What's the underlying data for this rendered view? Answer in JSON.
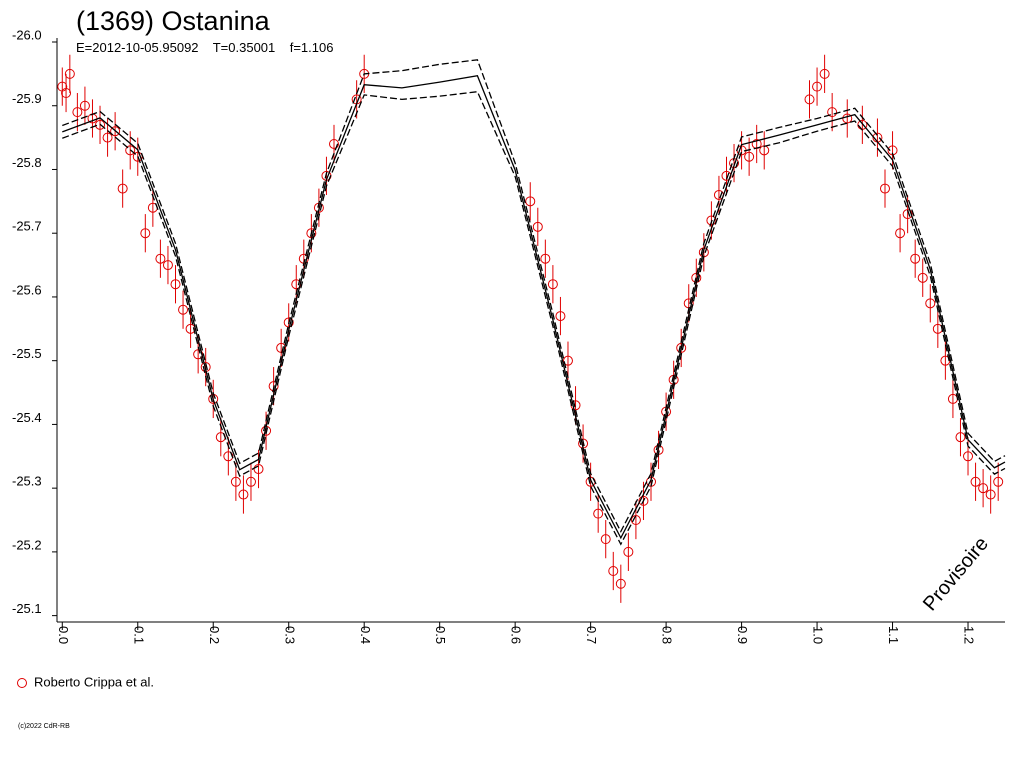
{
  "chart_data": {
    "type": "scatter",
    "title": "(1369) Ostanina",
    "subtitle": "E=2012-10-05.95092    T=0.35001    f=1.106",
    "watermark": "Provisoire",
    "footer": "(c)2022 CdR-RB",
    "xlim": [
      -0.007,
      1.249
    ],
    "ylim": [
      -25.09,
      -26.0
    ],
    "xticks": [
      {
        "value": 0,
        "label": "0.0"
      },
      0.1,
      0.2,
      0.3,
      0.4,
      0.5,
      0.6,
      0.7,
      0.8,
      0.9,
      {
        "value": 1,
        "label": "1.0"
      },
      1.1,
      1.2
    ],
    "yticks": [
      {
        "value": -26,
        "label": "-26.0"
      },
      -25.9,
      -25.8,
      -25.7,
      -25.6,
      -25.5,
      -25.4,
      -25.3,
      -25.2,
      -25.1
    ],
    "series": [
      {
        "name": "Roberto Crippa et al.",
        "color": "#e00000",
        "error": 0.03,
        "x": [
          0.0,
          0.005,
          0.01,
          0.02,
          0.03,
          0.04,
          0.05,
          0.06,
          0.07,
          0.08,
          0.09,
          0.1,
          0.11,
          0.12,
          0.13,
          0.14,
          0.15,
          0.16,
          0.17,
          0.18,
          0.19,
          0.2,
          0.21,
          0.22,
          0.23,
          0.24,
          0.25,
          0.26,
          0.27,
          0.28,
          0.29,
          0.3,
          0.31,
          0.32,
          0.33,
          0.34,
          0.35,
          0.36,
          0.39,
          0.4,
          0.62,
          0.63,
          0.64,
          0.65,
          0.66,
          0.67,
          0.68,
          0.69,
          0.7,
          0.71,
          0.72,
          0.73,
          0.74,
          0.75,
          0.76,
          0.77,
          0.78,
          0.79,
          0.8,
          0.81,
          0.82,
          0.83,
          0.84,
          0.85,
          0.86,
          0.87,
          0.88,
          0.89,
          0.9,
          0.91,
          0.92,
          0.93,
          0.99,
          1.0,
          1.01,
          1.02,
          1.04,
          1.06,
          1.08,
          1.09,
          1.1,
          1.11,
          1.12,
          1.13,
          1.14,
          1.15,
          1.16,
          1.17,
          1.18,
          1.19,
          1.2,
          1.21,
          1.22,
          1.23,
          1.24
        ],
        "values": [
          -25.93,
          -25.92,
          -25.95,
          -25.89,
          -25.9,
          -25.88,
          -25.87,
          -25.85,
          -25.86,
          -25.77,
          -25.83,
          -25.82,
          -25.7,
          -25.74,
          -25.66,
          -25.65,
          -25.62,
          -25.58,
          -25.55,
          -25.51,
          -25.49,
          -25.44,
          -25.38,
          -25.35,
          -25.31,
          -25.29,
          -25.31,
          -25.33,
          -25.39,
          -25.46,
          -25.52,
          -25.56,
          -25.62,
          -25.66,
          -25.7,
          -25.74,
          -25.79,
          -25.84,
          -25.91,
          -25.95,
          -25.75,
          -25.71,
          -25.66,
          -25.62,
          -25.57,
          -25.5,
          -25.43,
          -25.37,
          -25.31,
          -25.26,
          -25.22,
          -25.17,
          -25.15,
          -25.2,
          -25.25,
          -25.28,
          -25.31,
          -25.36,
          -25.42,
          -25.47,
          -25.52,
          -25.59,
          -25.63,
          -25.67,
          -25.72,
          -25.76,
          -25.79,
          -25.81,
          -25.83,
          -25.82,
          -25.84,
          -25.83,
          -25.91,
          -25.93,
          -25.95,
          -25.89,
          -25.88,
          -25.87,
          -25.85,
          -25.77,
          -25.83,
          -25.7,
          -25.73,
          -25.66,
          -25.63,
          -25.59,
          -25.55,
          -25.5,
          -25.44,
          -25.38,
          -25.35,
          -25.31,
          -25.3,
          -25.29,
          -25.31
        ]
      }
    ],
    "lines_x": [
      0.0,
      0.05,
      0.1,
      0.15,
      0.2,
      0.235,
      0.26,
      0.3,
      0.35,
      0.4,
      0.45,
      0.5,
      0.55,
      0.6,
      0.65,
      0.7,
      0.74,
      0.78,
      0.85,
      0.9,
      0.95,
      1.0,
      1.05,
      1.1,
      1.15,
      1.2,
      1.235,
      1.249
    ],
    "lines": [
      {
        "dash": false,
        "color": "#000000",
        "values": [
          -25.859,
          -25.881,
          -25.831,
          -25.674,
          -25.439,
          -25.329,
          -25.345,
          -25.548,
          -25.784,
          -25.933,
          -25.928,
          -25.937,
          -25.947,
          -25.799,
          -25.564,
          -25.313,
          -25.222,
          -25.313,
          -25.674,
          -25.839,
          -25.854,
          -25.87,
          -25.886,
          -25.815,
          -25.643,
          -25.376,
          -25.332,
          -25.341
        ]
      },
      {
        "dash": true,
        "color": "#000000",
        "values": [
          -25.869,
          -25.891,
          -25.841,
          -25.684,
          -25.449,
          -25.339,
          -25.355,
          -25.558,
          -25.794,
          -25.95,
          -25.955,
          -25.965,
          -25.972,
          -25.81,
          -25.574,
          -25.323,
          -25.232,
          -25.323,
          -25.684,
          -25.851,
          -25.866,
          -25.88,
          -25.896,
          -25.825,
          -25.653,
          -25.386,
          -25.342,
          -25.351
        ]
      },
      {
        "dash": true,
        "color": "#000000",
        "values": [
          -25.849,
          -25.871,
          -25.821,
          -25.664,
          -25.429,
          -25.319,
          -25.335,
          -25.538,
          -25.774,
          -25.917,
          -25.91,
          -25.915,
          -25.922,
          -25.789,
          -25.554,
          -25.303,
          -25.212,
          -25.303,
          -25.664,
          -25.828,
          -25.842,
          -25.86,
          -25.876,
          -25.805,
          -25.633,
          -25.366,
          -25.322,
          -25.331
        ]
      }
    ]
  }
}
